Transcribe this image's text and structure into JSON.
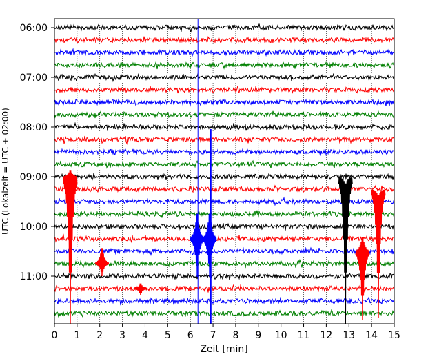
{
  "chart_data": {
    "type": "line",
    "title": "",
    "xlabel": "Zeit  [min]",
    "ylabel": "UTC (Lokalzeit = UTC + 02:00)",
    "xlim": [
      0,
      15
    ],
    "x_ticks": [
      "0",
      "1",
      "2",
      "3",
      "4",
      "5",
      "6",
      "7",
      "8",
      "9",
      "10",
      "11",
      "12",
      "13",
      "14",
      "15"
    ],
    "y_ticks": [
      "06:00",
      "07:00",
      "08:00",
      "09:00",
      "10:00",
      "11:00"
    ],
    "grid": "vertical dotted",
    "trace_interval_min": 15,
    "trace_colors": [
      "#000000",
      "#ff0000",
      "#0000ff",
      "#008000"
    ],
    "first_trace": "06:00",
    "trace_count": 24,
    "events": [
      {
        "trace": "09:00",
        "minute": 0.7,
        "color": "#ff0000",
        "amplitude": "large"
      },
      {
        "trace": "10:45",
        "minute": 2.1,
        "color": "#ff0000",
        "amplitude": "medium"
      },
      {
        "trace": "11:15",
        "minute": 3.8,
        "color": "#ff0000",
        "amplitude": "small"
      },
      {
        "trace": "06:00",
        "minute": 6.35,
        "color": "#0000ff",
        "amplitude": "very large"
      },
      {
        "trace": "08:00",
        "minute": 6.9,
        "color": "#0000ff",
        "amplitude": "very large"
      },
      {
        "trace": "10:15",
        "minute": 6.3,
        "color": "#0000ff",
        "amplitude": "large"
      },
      {
        "trace": "10:15",
        "minute": 6.85,
        "color": "#0000ff",
        "amplitude": "large"
      },
      {
        "trace": "09:00",
        "minute": 12.85,
        "color": "#000000",
        "amplitude": "large"
      },
      {
        "trace": "10:30",
        "minute": 13.6,
        "color": "#ff0000",
        "amplitude": "large"
      },
      {
        "trace": "09:15",
        "minute": 14.3,
        "color": "#ff0000",
        "amplitude": "large"
      }
    ]
  }
}
